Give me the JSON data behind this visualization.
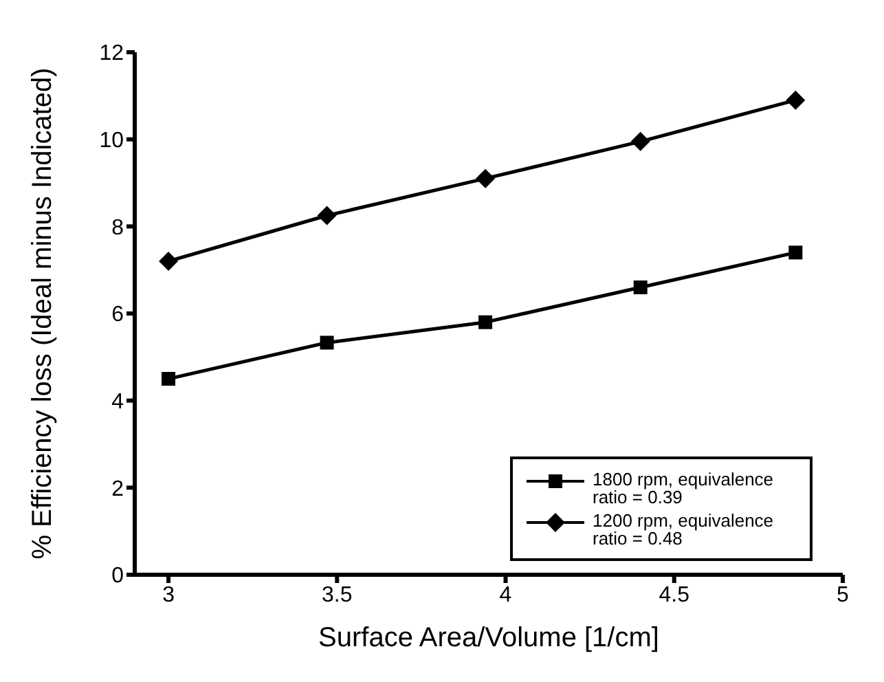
{
  "chart_data": {
    "type": "line",
    "xlabel": "Surface Area/Volume [1/cm]",
    "ylabel": "% Efficiency loss (Ideal  minus Indicated)",
    "xlim": [
      2.9,
      5
    ],
    "xticks": [
      3,
      3.5,
      4,
      4.5,
      5
    ],
    "ylim": [
      0,
      12
    ],
    "yticks": [
      0,
      2,
      4,
      6,
      8,
      10,
      12
    ],
    "grid": false,
    "legend": "bottom right",
    "line_style": "solid",
    "series": [
      {
        "name": "1800 rpm, equivalence ratio = 0.39",
        "color": "#000000",
        "marker": "square",
        "x": [
          3.0,
          3.47,
          3.94,
          4.4,
          4.86
        ],
        "values": [
          4.5,
          5.33,
          5.8,
          6.6,
          7.4
        ]
      },
      {
        "name": "1200 rpm, equivalence ratio = 0.48",
        "color": "#000000",
        "marker": "diamond",
        "x": [
          3.0,
          3.47,
          3.94,
          4.4,
          4.86
        ],
        "values": [
          7.2,
          8.25,
          9.1,
          9.95,
          10.9
        ]
      }
    ]
  }
}
